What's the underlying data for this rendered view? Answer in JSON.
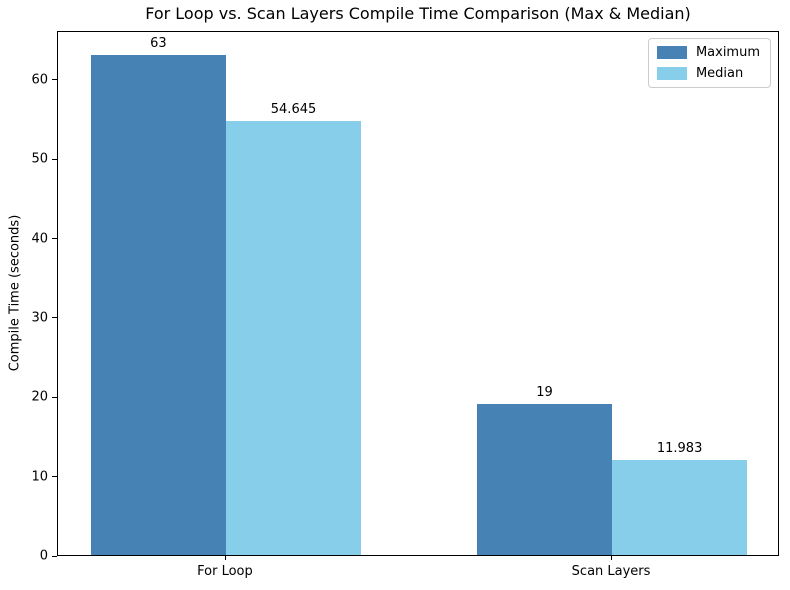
{
  "chart_data": {
    "type": "bar",
    "title": "For Loop vs. Scan Layers Compile Time Comparison (Max & Median)",
    "xlabel": "",
    "ylabel": "Compile Time (seconds)",
    "categories": [
      "For Loop",
      "Scan Layers"
    ],
    "series": [
      {
        "name": "Maximum",
        "color": "#4682B4",
        "values": [
          63,
          19
        ],
        "labels": [
          "63",
          "19"
        ]
      },
      {
        "name": "Median",
        "color": "#87CEEB",
        "values": [
          54.645,
          11.983
        ],
        "labels": [
          "54.645",
          "11.983"
        ]
      }
    ],
    "yticks": [
      0,
      10,
      20,
      30,
      40,
      50,
      60
    ],
    "ylim": [
      0,
      66.15
    ],
    "bar_width": 0.35,
    "grid": false,
    "legend_position": "upper right"
  }
}
